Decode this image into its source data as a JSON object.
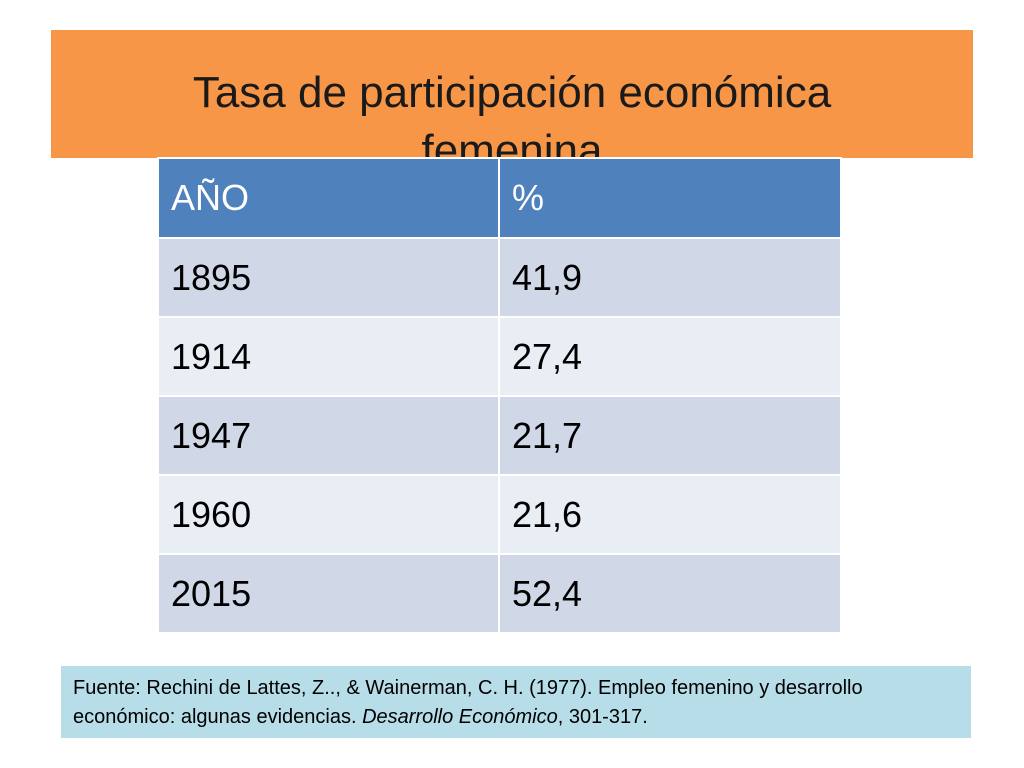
{
  "title": {
    "line1": "Tasa de participación económica",
    "line2": "femenina"
  },
  "table": {
    "headers": [
      "AÑO",
      "%"
    ],
    "rows": [
      [
        "1895",
        "41,9"
      ],
      [
        "1914",
        "27,4"
      ],
      [
        "1947",
        "21,7"
      ],
      [
        "1960",
        "21,6"
      ],
      [
        "2015",
        "52,4"
      ]
    ]
  },
  "source": {
    "prefix": "Fuente: Rechini de Lattes, Z.., & Wainerman, C. H. (1977). Empleo femenino y desarrollo económico: algunas evidencias. ",
    "journal": "Desarrollo Económico",
    "suffix": ", 301-317."
  },
  "colors": {
    "title_bg": "#f79646",
    "header_bg": "#4f81bd",
    "row_odd": "#d0d8e8",
    "row_even": "#e9edf4",
    "source_bg": "#b7dde8"
  }
}
